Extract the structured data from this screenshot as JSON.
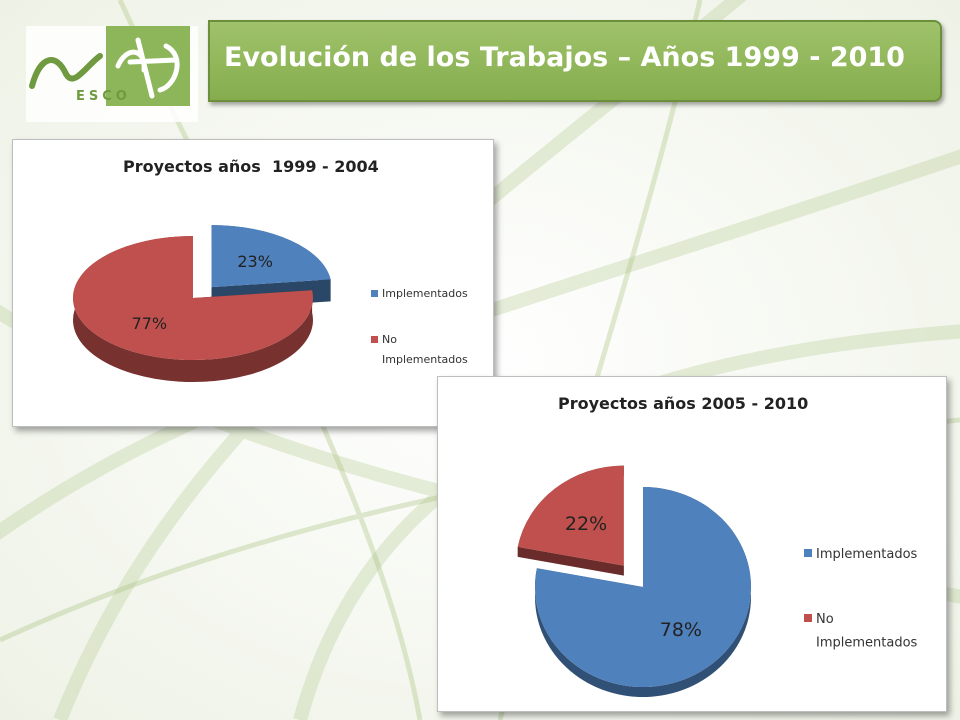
{
  "slide": {
    "title": "Evolución de los Trabajos – Años 1999 - 2010",
    "logo_text": "ESCO",
    "accent_color": "#8db65a"
  },
  "chart_data": [
    {
      "type": "pie",
      "title": "Proyectos años  1999 - 2004",
      "categories": [
        "Implementados",
        "No Implementados"
      ],
      "values": [
        23,
        77
      ],
      "labels": [
        "23%",
        "77%"
      ],
      "colors": [
        "#4f81bd",
        "#c0504d"
      ],
      "exploded": "Implementados",
      "style": "3d",
      "legend": "right"
    },
    {
      "type": "pie",
      "title": "Proyectos años 2005 - 2010",
      "categories": [
        "Implementados",
        "No Implementados"
      ],
      "values": [
        78,
        22
      ],
      "labels": [
        "78%",
        "22%"
      ],
      "colors": [
        "#4f81bd",
        "#c0504d"
      ],
      "exploded": "No Implementados",
      "style": "3d",
      "legend": "right"
    }
  ]
}
